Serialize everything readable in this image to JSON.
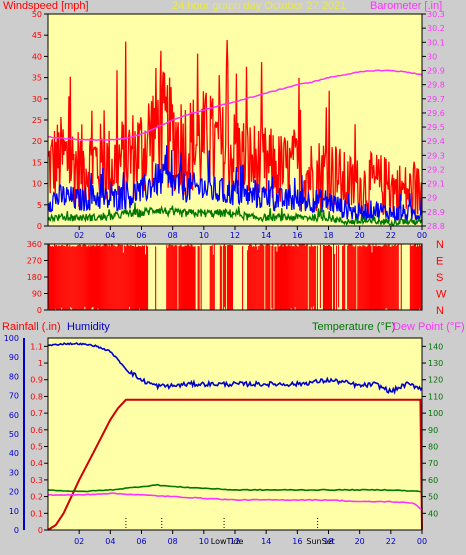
{
  "chart_data": [
    {
      "type": "line",
      "title": "24 hour graph day   October 27 2021",
      "xlabel": "",
      "ylabel": "Windspeed [mph]",
      "y2label": "Barometer [.in]",
      "x_ticks": [
        "02",
        "04",
        "06",
        "08",
        "10",
        "12",
        "14",
        "16",
        "18",
        "20",
        "22",
        "00"
      ],
      "y_ticks": [
        "0",
        "5",
        "10",
        "15",
        "20",
        "25",
        "30",
        "35",
        "40",
        "45",
        "50"
      ],
      "y2_ticks": [
        "28.8",
        "28.9",
        "29",
        "29.1",
        "29.2",
        "29.3",
        "29.4",
        "29.5",
        "29.6",
        "29.7",
        "29.8",
        "29.9",
        "30",
        "30.1",
        "30.2",
        "30.3"
      ],
      "ylim": [
        0,
        50
      ],
      "y2lim": [
        28.8,
        30.3
      ],
      "xlim": [
        0,
        24
      ],
      "grid": false,
      "series": [
        {
          "name": "Windspeed [mph]",
          "axis": "left",
          "color": "#ff0000",
          "x": [
            0,
            1,
            2,
            3,
            4,
            5,
            6,
            7,
            8,
            9,
            10,
            11,
            12,
            13,
            14,
            15,
            16,
            17,
            18,
            19,
            20,
            21,
            22,
            23,
            24
          ],
          "values": [
            14,
            16,
            14,
            15,
            14,
            16,
            18,
            24,
            21,
            19,
            20,
            18,
            17,
            15,
            14,
            13,
            13,
            12,
            13,
            10,
            9,
            10,
            9,
            8,
            8
          ]
        },
        {
          "name": "",
          "axis": "left",
          "color": "#0000ff",
          "x": [
            0,
            1,
            2,
            3,
            4,
            5,
            6,
            7,
            8,
            9,
            10,
            11,
            12,
            13,
            14,
            15,
            16,
            17,
            18,
            19,
            20,
            21,
            22,
            23,
            24
          ],
          "values": [
            6,
            7,
            6,
            7,
            6,
            7,
            8,
            11,
            10,
            9,
            9,
            8,
            8,
            7,
            7,
            6,
            6,
            6,
            6,
            4,
            3,
            4,
            3,
            3,
            3
          ]
        },
        {
          "name": "",
          "axis": "left",
          "color": "#007700",
          "x": [
            0,
            1,
            2,
            3,
            4,
            5,
            6,
            7,
            8,
            9,
            10,
            11,
            12,
            13,
            14,
            15,
            16,
            17,
            18,
            19,
            20,
            21,
            22,
            23,
            24
          ],
          "values": [
            2,
            2,
            2,
            2,
            2,
            3,
            3,
            4,
            3,
            3,
            3,
            3,
            3,
            2,
            2,
            2,
            2,
            2,
            2,
            1,
            1,
            1,
            1,
            1,
            1
          ]
        },
        {
          "name": "Barometer [.in]",
          "axis": "right",
          "color": "#ff33ff",
          "x": [
            0,
            1,
            2,
            3,
            4,
            5,
            6,
            7,
            8,
            9,
            10,
            11,
            12,
            13,
            14,
            15,
            16,
            17,
            18,
            19,
            20,
            21,
            22,
            23,
            24
          ],
          "values": [
            29.43,
            29.42,
            29.41,
            29.41,
            29.41,
            29.42,
            29.45,
            29.5,
            29.55,
            29.59,
            29.62,
            29.65,
            29.68,
            29.71,
            29.74,
            29.77,
            29.8,
            29.82,
            29.85,
            29.87,
            29.89,
            29.9,
            29.9,
            29.89,
            29.87
          ]
        }
      ]
    },
    {
      "type": "bar",
      "title": "",
      "ylabel": "",
      "y_ticks": [
        "0",
        "90",
        "180",
        "270",
        "360"
      ],
      "y2_ticks": [
        "N",
        "W",
        "S",
        "E",
        "N"
      ],
      "ylim": [
        0,
        360
      ],
      "xlim": [
        0,
        24
      ],
      "x_ticks": [],
      "gaps": [
        [
          6.4,
          7.6
        ],
        [
          9.5,
          10.4
        ],
        [
          10.8,
          11.2
        ],
        [
          11.9,
          12.8
        ],
        [
          17.2,
          17.8
        ],
        [
          18.4,
          18.9
        ],
        [
          22.5,
          23.2
        ]
      ],
      "series": [
        {
          "name": "",
          "color": "#ff0000"
        }
      ]
    },
    {
      "type": "line",
      "title": "",
      "xlabel": "",
      "labels": {
        "rain": "Rainfall (.in)",
        "humidity": "Humidity",
        "temperature": "Temperature (°F)",
        "dewpoint": "Dew Point (°F)"
      },
      "x_ticks": [
        "02",
        "04",
        "06",
        "08",
        "10",
        "12",
        "14",
        "16",
        "18",
        "20",
        "22",
        "00"
      ],
      "y_ticks_humidity": [
        "0",
        "10",
        "20",
        "30",
        "40",
        "50",
        "60",
        "70",
        "80",
        "90",
        "100"
      ],
      "y_ticks_rain": [
        "0",
        "0.1",
        "0.2",
        "0.3",
        "0.4",
        "0.5",
        "0.6",
        "0.7",
        "0.8",
        "0.9",
        "1",
        "1.1"
      ],
      "y_ticks_temp": [
        "40",
        "50",
        "60",
        "70",
        "80",
        "90",
        "100",
        "110",
        "120",
        "130",
        "140"
      ],
      "ylim_rain": [
        0,
        1.15
      ],
      "ylim_humidity": [
        0,
        100
      ],
      "ylim_temp": [
        30,
        145
      ],
      "xlim": [
        0,
        24
      ],
      "annotations": [
        "LowTide",
        "SunSet"
      ],
      "series": [
        {
          "name": "Humidity",
          "axis": "humidity",
          "color": "#0000cc",
          "x": [
            0,
            1,
            2,
            3,
            4,
            5,
            6,
            7,
            8,
            9,
            10,
            11,
            12,
            13,
            14,
            15,
            16,
            17,
            18,
            19,
            20,
            21,
            22,
            23,
            24
          ],
          "values": [
            96,
            97,
            97,
            96,
            93,
            84,
            78,
            75,
            75,
            76,
            76,
            76,
            76,
            76,
            76,
            76,
            76,
            77,
            78,
            77,
            75,
            76,
            72,
            76,
            74
          ]
        },
        {
          "name": "Rainfall (.in)",
          "axis": "rain",
          "color": "#cc0000",
          "x": [
            0,
            0.5,
            1,
            2,
            3,
            4,
            4.5,
            5,
            6,
            8,
            10,
            12,
            14,
            16,
            18,
            20,
            22,
            23.9,
            24
          ],
          "values": [
            0,
            0.03,
            0.1,
            0.3,
            0.48,
            0.66,
            0.73,
            0.78,
            0.78,
            0.78,
            0.78,
            0.78,
            0.78,
            0.78,
            0.78,
            0.78,
            0.78,
            0.78,
            0.0
          ]
        },
        {
          "name": "Temperature (°F)",
          "axis": "temp",
          "color": "#007700",
          "x": [
            0,
            2,
            4,
            6,
            7,
            8,
            10,
            12,
            14,
            16,
            18,
            20,
            22,
            24
          ],
          "values": [
            54,
            53,
            54,
            56,
            57,
            56,
            55,
            54,
            54,
            54,
            54,
            54,
            54,
            53
          ]
        },
        {
          "name": "Dew Point (°F)",
          "axis": "temp",
          "color": "#ff33ff",
          "x": [
            0,
            2,
            4,
            6,
            8,
            10,
            12,
            14,
            16,
            18,
            20,
            22,
            23.5,
            24
          ],
          "values": [
            51,
            51,
            52,
            51,
            50,
            49,
            48,
            48,
            48,
            48,
            47,
            47,
            46,
            42
          ]
        }
      ],
      "events": [
        {
          "x": 5.0,
          "label": ""
        },
        {
          "x": 7.3,
          "label": ""
        },
        {
          "x": 11.3,
          "label": "LowTide"
        },
        {
          "x": 17.3,
          "label": "SunSet"
        }
      ]
    }
  ]
}
